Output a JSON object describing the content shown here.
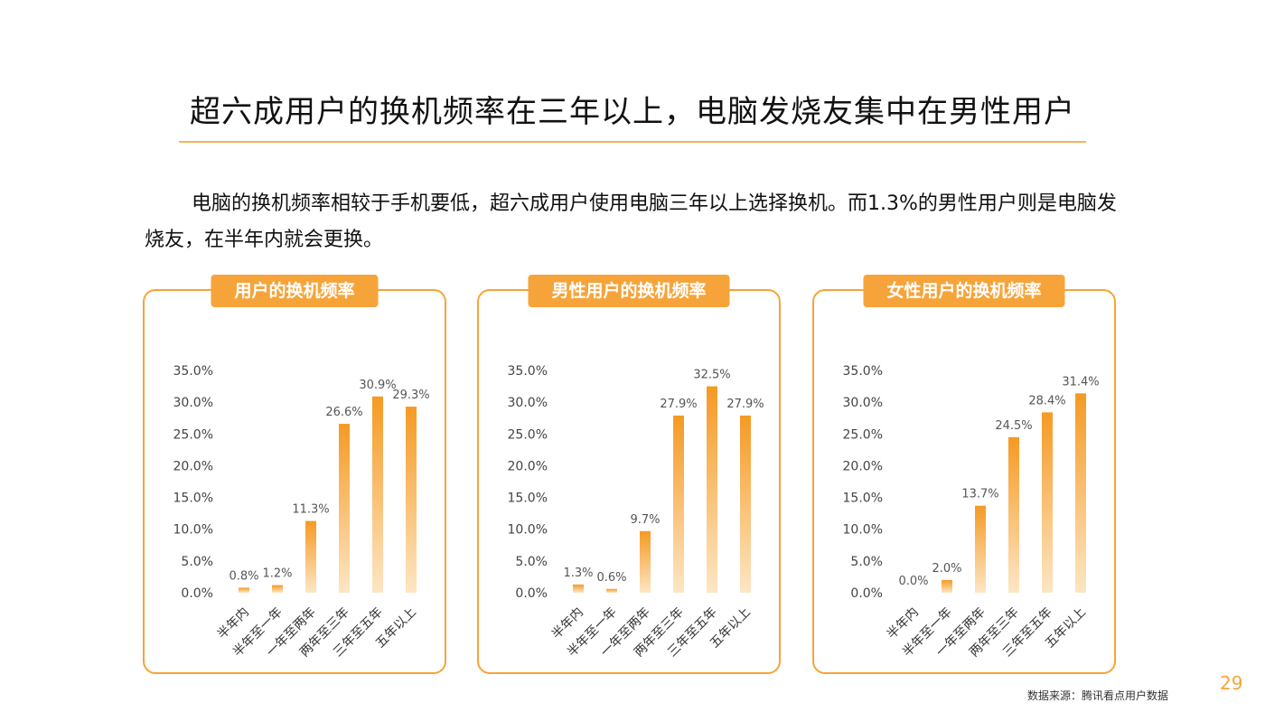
{
  "page": {
    "title": "超六成用户的换机频率在三年以上，电脑发烧友集中在男性用户",
    "intro": "电脑的换机频率相较于手机要低，超六成用户使用电脑三年以上选择换机。而1.3%的男性用户则是电脑发烧友，在半年内就会更换。",
    "source": "数据来源：腾讯看点用户数据",
    "page_number": "29"
  },
  "colors": {
    "accent": "#f6a43a",
    "bar_top": "#f59a23",
    "bar_bottom": "#fde6c4"
  },
  "chart_data": [
    {
      "type": "bar",
      "title": "用户的换机频率",
      "categories": [
        "半年内",
        "半年至一年",
        "一年至两年",
        "两年至三年",
        "三年至五年",
        "五年以上"
      ],
      "values": [
        0.8,
        1.2,
        11.3,
        26.6,
        30.9,
        29.3
      ],
      "value_labels": [
        "0.8%",
        "1.2%",
        "11.3%",
        "26.6%",
        "30.9%",
        "29.3%"
      ],
      "yticks": [
        "0.0%",
        "5.0%",
        "10.0%",
        "15.0%",
        "20.0%",
        "25.0%",
        "30.0%",
        "35.0%"
      ],
      "ylim": [
        0,
        35
      ]
    },
    {
      "type": "bar",
      "title": "男性用户的换机频率",
      "categories": [
        "半年内",
        "半年至一年",
        "一年至两年",
        "两年至三年",
        "三年至五年",
        "五年以上"
      ],
      "values": [
        1.3,
        0.6,
        9.7,
        27.9,
        32.5,
        27.9
      ],
      "value_labels": [
        "1.3%",
        "0.6%",
        "9.7%",
        "27.9%",
        "32.5%",
        "27.9%"
      ],
      "yticks": [
        "0.0%",
        "5.0%",
        "10.0%",
        "15.0%",
        "20.0%",
        "25.0%",
        "30.0%",
        "35.0%"
      ],
      "ylim": [
        0,
        35
      ]
    },
    {
      "type": "bar",
      "title": "女性用户的换机频率",
      "categories": [
        "半年内",
        "半年至一年",
        "一年至两年",
        "两年至三年",
        "三年至五年",
        "五年以上"
      ],
      "values": [
        0.0,
        2.0,
        13.7,
        24.5,
        28.4,
        31.4
      ],
      "value_labels": [
        "0.0%",
        "2.0%",
        "13.7%",
        "24.5%",
        "28.4%",
        "31.4%"
      ],
      "yticks": [
        "0.0%",
        "5.0%",
        "10.0%",
        "15.0%",
        "20.0%",
        "25.0%",
        "30.0%",
        "35.0%"
      ],
      "ylim": [
        0,
        35
      ]
    }
  ]
}
